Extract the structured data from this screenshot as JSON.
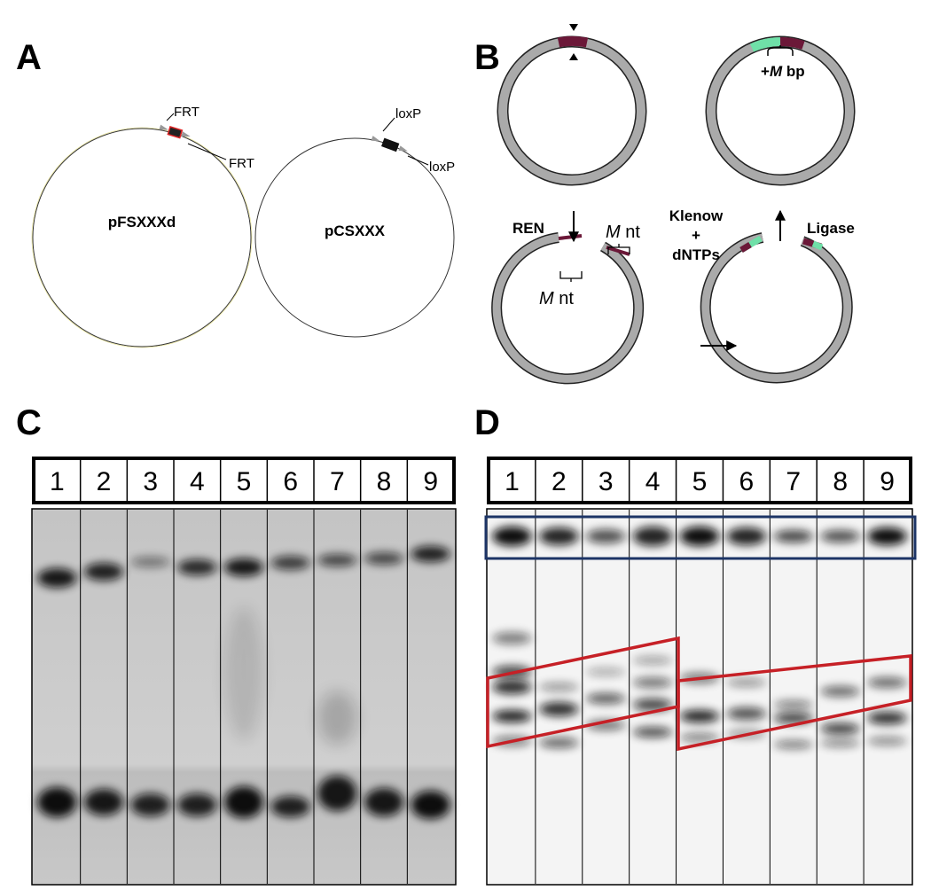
{
  "panels": [
    {
      "label": "A",
      "plasmids": [
        {
          "name": "pFSXXXd",
          "sites": [
            "FRT",
            "FRT"
          ]
        },
        {
          "name": "pCSXXX",
          "sites": [
            "loxP",
            "loxP"
          ]
        }
      ]
    },
    {
      "label": "B",
      "cut": "REN",
      "fill_in": [
        "Klenow",
        "+",
        "dNTPs"
      ],
      "ligation": "Ligase",
      "overhang": [
        {
          "var": "M",
          "unit": "nt"
        },
        {
          "var": "M",
          "unit": "nt"
        }
      ],
      "insert": {
        "prefix": "+",
        "var": "M",
        "unit": "bp"
      }
    },
    {
      "label": "C",
      "lanes": [
        "1",
        "2",
        "3",
        "4",
        "5",
        "6",
        "7",
        "8",
        "9"
      ]
    },
    {
      "label": "D",
      "lanes": [
        "1",
        "2",
        "3",
        "4",
        "5",
        "6",
        "7",
        "8",
        "9"
      ]
    }
  ]
}
